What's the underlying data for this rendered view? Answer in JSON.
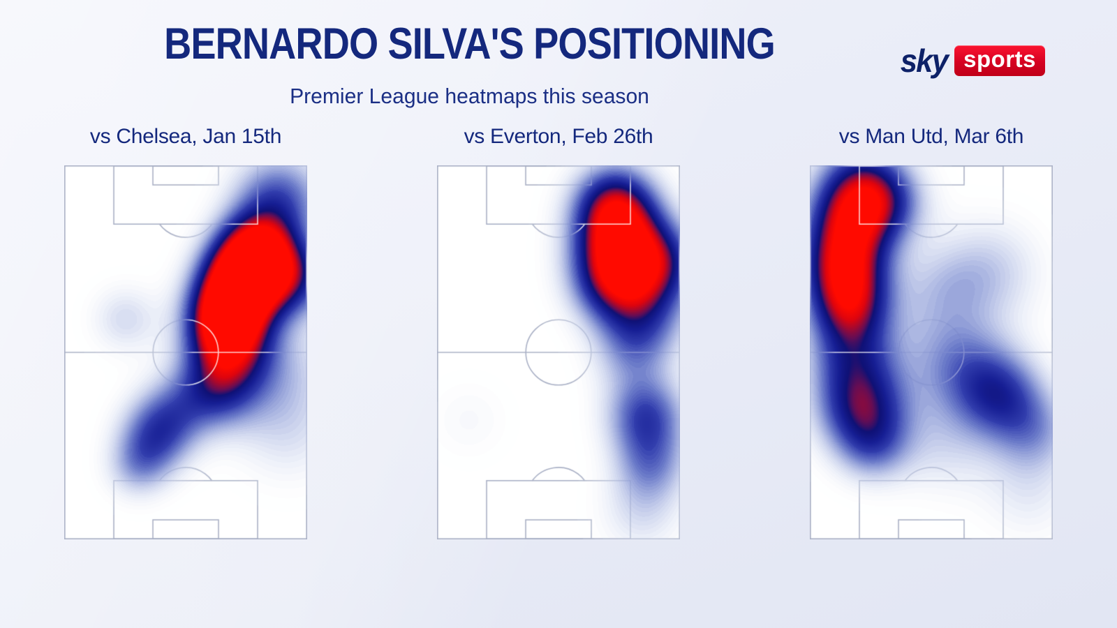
{
  "header": {
    "title": "BERNARDO SILVA'S POSITIONING",
    "subtitle": "Premier League heatmaps this season"
  },
  "branding": {
    "sky": "sky",
    "sports": "sports",
    "navy": "#0d2168",
    "red": "#d50222"
  },
  "colors": {
    "background": "#e9ecf7",
    "title_navy": "#14287d",
    "pitch_white": "#ffffff",
    "pitch_line_gray": "#aab1c6",
    "heat_peak_red": "#ff0a00",
    "heat_deep_blue": "#161e94"
  },
  "heat_colormap": [
    [
      0.0,
      255,
      255,
      255,
      0
    ],
    [
      0.05,
      233,
      237,
      248,
      60
    ],
    [
      0.14,
      203,
      212,
      237,
      140
    ],
    [
      0.26,
      158,
      171,
      221,
      210
    ],
    [
      0.38,
      103,
      119,
      200,
      245
    ],
    [
      0.5,
      52,
      64,
      175,
      255
    ],
    [
      0.62,
      22,
      30,
      148,
      255
    ],
    [
      0.71,
      15,
      17,
      118,
      255
    ],
    [
      0.77,
      102,
      13,
      84,
      255
    ],
    [
      0.83,
      163,
      9,
      48,
      255
    ],
    [
      0.9,
      222,
      4,
      14,
      255
    ],
    [
      1.0,
      255,
      10,
      0,
      255
    ]
  ],
  "chart_data": [
    {
      "type": "heatmap",
      "title": "vs Chelsea, Jan 15th",
      "surface": "vertical football pitch, attacking top goal",
      "coordinates": "kernels as [x_frac_across_width, y_frac_down_length, sigma_frac_of_length, weight 0..1]; weight 1 = hottest (red)",
      "density_kernels": [
        [
          0.8,
          0.22,
          0.07,
          0.66
        ],
        [
          0.75,
          0.28,
          0.075,
          0.78
        ],
        [
          0.7,
          0.35,
          0.075,
          0.76
        ],
        [
          0.66,
          0.42,
          0.07,
          0.66
        ],
        [
          0.88,
          0.09,
          0.085,
          0.46
        ],
        [
          0.94,
          0.3,
          0.07,
          0.5
        ],
        [
          0.68,
          0.5,
          0.08,
          0.5
        ],
        [
          0.62,
          0.6,
          0.075,
          0.42
        ],
        [
          0.25,
          0.41,
          0.065,
          0.18
        ],
        [
          0.44,
          0.66,
          0.07,
          0.26
        ],
        [
          0.37,
          0.73,
          0.07,
          0.38
        ],
        [
          0.3,
          0.81,
          0.06,
          0.22
        ],
        [
          0.88,
          0.55,
          0.11,
          0.2
        ],
        [
          0.92,
          0.72,
          0.1,
          0.13
        ]
      ]
    },
    {
      "type": "heatmap",
      "title": "vs Everton, Feb 26th",
      "surface": "vertical football pitch, attacking top goal",
      "coordinates": "kernels as [x_frac_across_width, y_frac_down_length, sigma_frac_of_length, weight 0..1]; weight 1 = hottest (red)",
      "density_kernels": [
        [
          0.73,
          0.1,
          0.075,
          0.62
        ],
        [
          0.75,
          0.2,
          0.085,
          0.74
        ],
        [
          0.73,
          0.31,
          0.08,
          0.62
        ],
        [
          0.92,
          0.26,
          0.075,
          0.48
        ],
        [
          0.86,
          0.4,
          0.08,
          0.34
        ],
        [
          0.8,
          0.5,
          0.075,
          0.24
        ],
        [
          0.86,
          0.67,
          0.075,
          0.48
        ],
        [
          0.88,
          0.8,
          0.07,
          0.3
        ],
        [
          0.84,
          0.93,
          0.08,
          0.16
        ],
        [
          0.13,
          0.68,
          0.08,
          0.07
        ]
      ]
    },
    {
      "type": "heatmap",
      "title": "vs Man Utd, Mar 6th",
      "surface": "vertical football pitch, attacking top goal",
      "coordinates": "kernels as [x_frac_across_width, y_frac_down_length, sigma_frac_of_length, weight 0..1]; weight 1 = hottest (red)",
      "density_kernels": [
        [
          0.16,
          0.14,
          0.08,
          0.58
        ],
        [
          0.14,
          0.26,
          0.08,
          0.72
        ],
        [
          0.16,
          0.37,
          0.075,
          0.62
        ],
        [
          0.21,
          0.04,
          0.08,
          0.44
        ],
        [
          0.31,
          0.1,
          0.075,
          0.38
        ],
        [
          0.17,
          0.5,
          0.08,
          0.4
        ],
        [
          0.21,
          0.64,
          0.085,
          0.62
        ],
        [
          0.26,
          0.75,
          0.07,
          0.3
        ],
        [
          0.78,
          0.61,
          0.08,
          0.44
        ],
        [
          0.92,
          0.71,
          0.08,
          0.28
        ],
        [
          0.63,
          0.54,
          0.09,
          0.24
        ],
        [
          0.74,
          0.28,
          0.1,
          0.2
        ],
        [
          0.52,
          0.44,
          0.12,
          0.14
        ],
        [
          0.56,
          0.74,
          0.1,
          0.16
        ],
        [
          0.9,
          0.88,
          0.09,
          0.12
        ],
        [
          0.55,
          0.32,
          0.08,
          0.1
        ]
      ]
    }
  ]
}
